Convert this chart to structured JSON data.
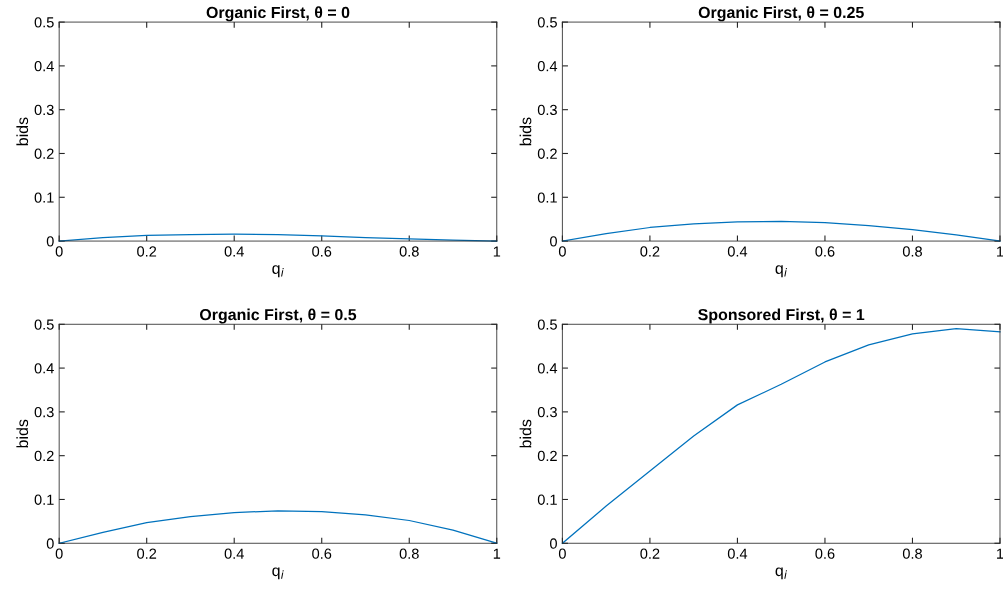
{
  "chart_data": [
    {
      "type": "line",
      "title": "Organic First, θ = 0",
      "xlabel": "q$_{i}$",
      "ylabel": "bids",
      "xlim": [
        0,
        1
      ],
      "ylim": [
        0,
        0.5
      ],
      "xticks": [
        0,
        0.2,
        0.4,
        0.6,
        0.8,
        1
      ],
      "yticks": [
        0,
        0.1,
        0.2,
        0.3,
        0.4,
        0.5
      ],
      "grid": false,
      "legend": false,
      "x": [
        0,
        0.1,
        0.2,
        0.3,
        0.4,
        0.5,
        0.6,
        0.7,
        0.8,
        0.9,
        1
      ],
      "series": [
        {
          "color": "#0072bd",
          "values": [
            0,
            0.008,
            0.013,
            0.015,
            0.016,
            0.015,
            0.012,
            0.008,
            0.005,
            0.002,
            0
          ]
        }
      ]
    },
    {
      "type": "line",
      "title": "Organic First, θ = 0.25",
      "xlabel": "q$_{i}$",
      "ylabel": "bids",
      "xlim": [
        0,
        1
      ],
      "ylim": [
        0,
        0.5
      ],
      "xticks": [
        0,
        0.2,
        0.4,
        0.6,
        0.8,
        1
      ],
      "yticks": [
        0,
        0.1,
        0.2,
        0.3,
        0.4,
        0.5
      ],
      "grid": false,
      "legend": false,
      "x": [
        0,
        0.1,
        0.2,
        0.3,
        0.4,
        0.5,
        0.6,
        0.7,
        0.8,
        0.9,
        1
      ],
      "series": [
        {
          "color": "#0072bd",
          "values": [
            0,
            0.017,
            0.031,
            0.039,
            0.044,
            0.045,
            0.042,
            0.035,
            0.026,
            0.014,
            0
          ]
        }
      ]
    },
    {
      "type": "line",
      "title": "Organic First, θ = 0.5",
      "xlabel": "q$_{i}$",
      "ylabel": "bids",
      "xlim": [
        0,
        1
      ],
      "ylim": [
        0,
        0.5
      ],
      "xticks": [
        0,
        0.2,
        0.4,
        0.6,
        0.8,
        1
      ],
      "yticks": [
        0,
        0.1,
        0.2,
        0.3,
        0.4,
        0.5
      ],
      "grid": false,
      "legend": false,
      "x": [
        0,
        0.1,
        0.2,
        0.3,
        0.4,
        0.5,
        0.6,
        0.7,
        0.8,
        0.9,
        1
      ],
      "series": [
        {
          "color": "#0072bd",
          "values": [
            0,
            0.025,
            0.047,
            0.061,
            0.07,
            0.074,
            0.072,
            0.065,
            0.052,
            0.03,
            0
          ]
        }
      ]
    },
    {
      "type": "line",
      "title": "Sponsored First, θ = 1",
      "xlabel": "q$_{i}$",
      "ylabel": "bids",
      "xlim": [
        0,
        1
      ],
      "ylim": [
        0,
        0.5
      ],
      "xticks": [
        0,
        0.2,
        0.4,
        0.6,
        0.8,
        1
      ],
      "yticks": [
        0,
        0.1,
        0.2,
        0.3,
        0.4,
        0.5
      ],
      "grid": false,
      "legend": false,
      "x": [
        0,
        0.1,
        0.2,
        0.3,
        0.4,
        0.5,
        0.6,
        0.7,
        0.8,
        0.9,
        1
      ],
      "series": [
        {
          "color": "#0072bd",
          "values": [
            0,
            0.085,
            0.165,
            0.245,
            0.316,
            0.363,
            0.414,
            0.453,
            0.478,
            0.49,
            0.483
          ]
        }
      ]
    }
  ]
}
